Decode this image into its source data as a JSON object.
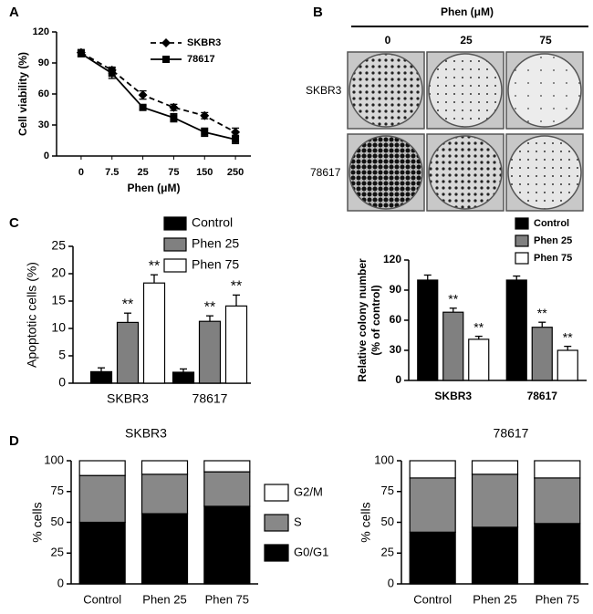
{
  "panel_labels": [
    "A",
    "B",
    "C",
    "D"
  ],
  "colony_image": {
    "title": "Phen (μM)",
    "columns": [
      "0",
      "25",
      "75"
    ],
    "rows": [
      "SKBR3",
      "78617"
    ]
  },
  "chart_data": [
    {
      "type": "line",
      "xlabel": "Phen (μM)",
      "ylabel": "Cell viability (%)",
      "categories": [
        "0",
        "7.5",
        "25",
        "75",
        "150",
        "250"
      ],
      "ylim": [
        0,
        120
      ],
      "yticks": [
        0,
        30,
        60,
        90,
        120
      ],
      "series": [
        {
          "name": "SKBR3",
          "color": "#000000",
          "dash": true,
          "marker": "diamond",
          "values": [
            100,
            83,
            59,
            47,
            39,
            23
          ],
          "errors": [
            3,
            3,
            4,
            3,
            3,
            4
          ]
        },
        {
          "name": "78617",
          "color": "#000000",
          "dash": false,
          "marker": "square",
          "values": [
            99,
            80,
            47,
            37,
            23,
            16
          ],
          "errors": [
            3,
            5,
            2,
            4,
            4,
            4
          ]
        }
      ]
    },
    {
      "type": "bar",
      "ylabel": "Apoptotic cells (%)",
      "categories": [
        "SKBR3",
        "78617"
      ],
      "ylim": [
        0,
        25
      ],
      "yticks": [
        0,
        5,
        10,
        15,
        20,
        25
      ],
      "series": [
        {
          "name": "Control",
          "color": "#000000",
          "values": [
            2.1,
            2
          ],
          "errors": [
            0.7,
            0.6
          ]
        },
        {
          "name": "Phen 25",
          "color": "#808080",
          "values": [
            11.1,
            11.3
          ],
          "errors": [
            1.7,
            1
          ],
          "annotations": [
            "**",
            "**"
          ]
        },
        {
          "name": "Phen 75",
          "color": "#ffffff",
          "values": [
            18.3,
            14.1
          ],
          "errors": [
            1.5,
            2
          ],
          "annotations": [
            "**",
            "**"
          ]
        }
      ]
    },
    {
      "type": "bar",
      "ylabel": [
        "Relative colony number",
        "(% of control)"
      ],
      "categories": [
        "SKBR3",
        "78617"
      ],
      "ylim": [
        0,
        120
      ],
      "yticks": [
        0,
        30,
        60,
        90,
        120
      ],
      "series": [
        {
          "name": "Control",
          "color": "#000000",
          "values": [
            100,
            100
          ],
          "errors": [
            5,
            4
          ]
        },
        {
          "name": "Phen 25",
          "color": "#808080",
          "values": [
            68,
            53
          ],
          "errors": [
            4,
            5
          ],
          "annotations": [
            "**",
            "**"
          ]
        },
        {
          "name": "Phen 75",
          "color": "#ffffff",
          "values": [
            41,
            30
          ],
          "errors": [
            3,
            4
          ],
          "annotations": [
            "**",
            "**"
          ]
        }
      ]
    },
    {
      "type": "stacked_bar",
      "title": "SKBR3",
      "ylabel": "% cells",
      "categories": [
        "Control",
        "Phen 25",
        "Phen 75"
      ],
      "ylim": [
        0,
        100
      ],
      "yticks": [
        0,
        25,
        50,
        75,
        100
      ],
      "series": [
        {
          "name": "G0/G1",
          "color": "#000000",
          "values": [
            50,
            57,
            63
          ]
        },
        {
          "name": "S",
          "color": "#888888",
          "values": [
            38,
            32,
            28
          ]
        },
        {
          "name": "G2/M",
          "color": "#ffffff",
          "values": [
            12,
            11,
            9
          ]
        }
      ]
    },
    {
      "type": "stacked_bar",
      "title": "78617",
      "ylabel": "% cells",
      "categories": [
        "Control",
        "Phen 25",
        "Phen 75"
      ],
      "ylim": [
        0,
        100
      ],
      "yticks": [
        0,
        25,
        50,
        75,
        100
      ],
      "series": [
        {
          "color": "#000000",
          "values": [
            42,
            46,
            49
          ]
        },
        {
          "color": "#888888",
          "values": [
            44,
            43,
            37
          ]
        },
        {
          "color": "#ffffff",
          "values": [
            14,
            11,
            14
          ]
        }
      ]
    }
  ]
}
